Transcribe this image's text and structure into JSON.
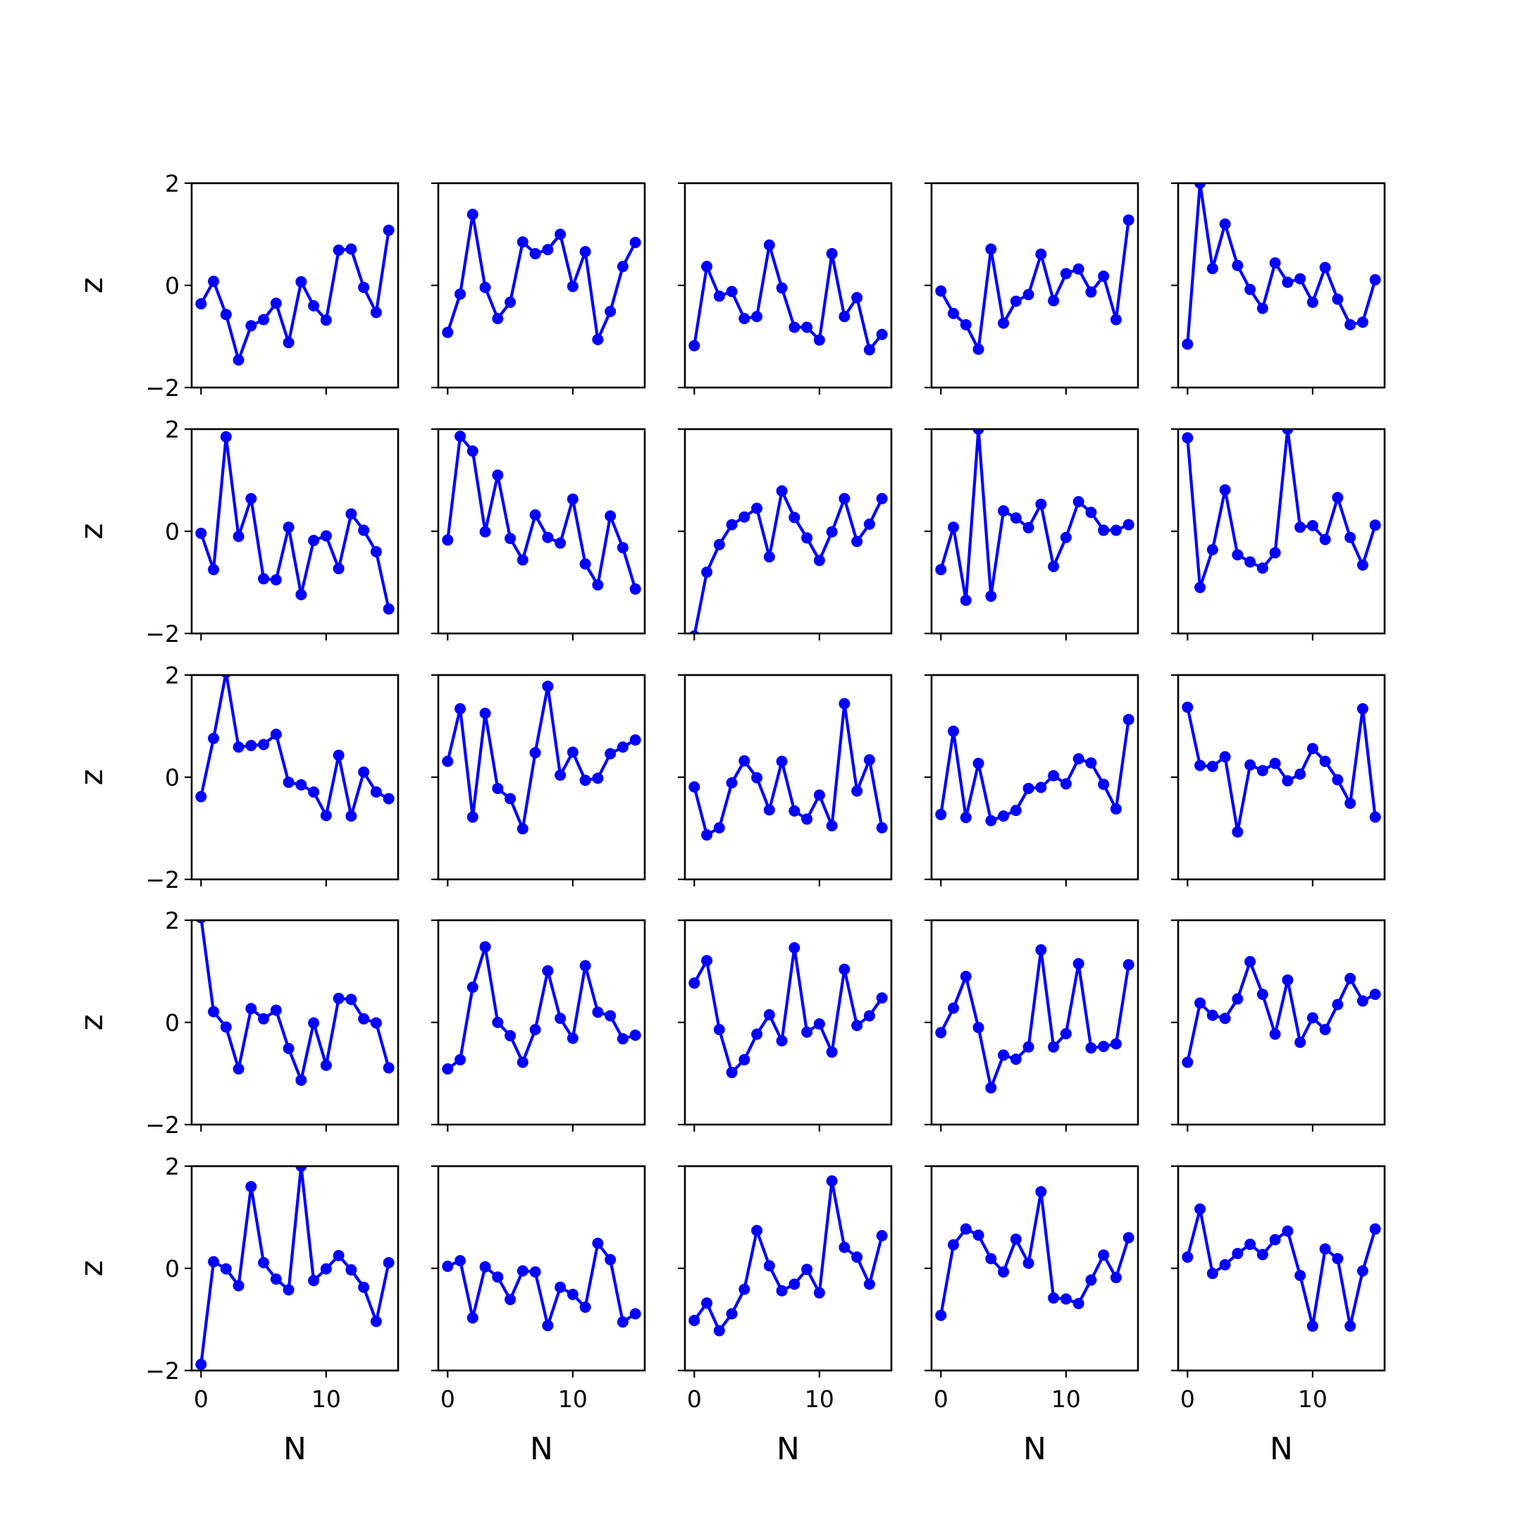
{
  "chart_data": {
    "type": "line",
    "layout": "5x5 grid of subplots",
    "xlabel": "N",
    "ylabel": "z",
    "xlim": [
      -0.75,
      15.75
    ],
    "ylim": [
      -2,
      2
    ],
    "x_ticks": [
      0,
      10
    ],
    "y_ticks": [
      -2,
      0,
      2
    ],
    "x_tick_labels": [
      "0",
      "10"
    ],
    "y_tick_labels": [
      "−2",
      "0",
      "2"
    ],
    "line_color": "#0000ff",
    "marker": "circle",
    "grid": false,
    "x": [
      0,
      1,
      2,
      3,
      4,
      5,
      6,
      7,
      8,
      9,
      10,
      11,
      12,
      13,
      14,
      15
    ],
    "panels": [
      {
        "row": 1,
        "col": 1,
        "values": [
          -0.36,
          0.08,
          -0.57,
          -1.46,
          -0.79,
          -0.67,
          -0.35,
          -1.12,
          0.07,
          -0.4,
          -0.68,
          0.69,
          0.71,
          -0.04,
          -0.53,
          1.08
        ]
      },
      {
        "row": 1,
        "col": 2,
        "values": [
          -0.92,
          -0.17,
          1.39,
          -0.04,
          -0.65,
          -0.33,
          0.85,
          0.62,
          0.7,
          1.0,
          -0.02,
          0.66,
          -1.06,
          -0.51,
          0.37,
          0.84
        ]
      },
      {
        "row": 1,
        "col": 3,
        "values": [
          -1.18,
          0.37,
          -0.21,
          -0.12,
          -0.65,
          -0.61,
          0.79,
          -0.05,
          -0.82,
          -0.82,
          -1.07,
          0.62,
          -0.61,
          -0.24,
          -1.26,
          -0.96
        ]
      },
      {
        "row": 1,
        "col": 4,
        "values": [
          -0.11,
          -0.55,
          -0.77,
          -1.25,
          0.71,
          -0.74,
          -0.31,
          -0.18,
          0.61,
          -0.3,
          0.23,
          0.32,
          -0.13,
          0.18,
          -0.67,
          1.28
        ]
      },
      {
        "row": 1,
        "col": 5,
        "values": [
          -1.15,
          2.0,
          0.33,
          1.2,
          0.39,
          -0.08,
          -0.45,
          0.44,
          0.06,
          0.13,
          -0.33,
          0.35,
          -0.27,
          -0.77,
          -0.72,
          0.11
        ]
      },
      {
        "row": 2,
        "col": 1,
        "values": [
          -0.04,
          -0.75,
          1.85,
          -0.1,
          0.64,
          -0.93,
          -0.95,
          0.08,
          -1.24,
          -0.18,
          -0.09,
          -0.73,
          0.34,
          0.02,
          -0.4,
          -1.52
        ]
      },
      {
        "row": 2,
        "col": 2,
        "values": [
          -0.17,
          1.86,
          1.57,
          -0.01,
          1.1,
          -0.14,
          -0.56,
          0.32,
          -0.12,
          -0.23,
          0.63,
          -0.64,
          -1.05,
          0.3,
          -0.32,
          -1.13
        ]
      },
      {
        "row": 2,
        "col": 3,
        "values": [
          -2.05,
          -0.8,
          -0.26,
          0.13,
          0.28,
          0.45,
          -0.5,
          0.79,
          0.27,
          -0.13,
          -0.57,
          -0.01,
          0.64,
          -0.2,
          0.14,
          0.64
        ]
      },
      {
        "row": 2,
        "col": 4,
        "values": [
          -0.75,
          0.08,
          -1.35,
          2.0,
          -1.27,
          0.4,
          0.26,
          0.07,
          0.53,
          -0.69,
          -0.12,
          0.58,
          0.37,
          0.02,
          0.02,
          0.13
        ]
      },
      {
        "row": 2,
        "col": 5,
        "values": [
          1.83,
          -1.1,
          -0.36,
          0.81,
          -0.46,
          -0.6,
          -0.72,
          -0.42,
          2.0,
          0.08,
          0.11,
          -0.16,
          0.66,
          -0.12,
          -0.66,
          0.12
        ]
      },
      {
        "row": 3,
        "col": 1,
        "values": [
          -0.38,
          0.76,
          2.05,
          0.59,
          0.62,
          0.64,
          0.84,
          -0.1,
          -0.15,
          -0.29,
          -0.75,
          0.43,
          -0.76,
          0.1,
          -0.29,
          -0.42
        ]
      },
      {
        "row": 3,
        "col": 2,
        "values": [
          0.31,
          1.34,
          -0.78,
          1.25,
          -0.22,
          -0.42,
          -1.01,
          0.48,
          1.78,
          0.04,
          0.49,
          -0.06,
          -0.02,
          0.46,
          0.59,
          0.73
        ]
      },
      {
        "row": 3,
        "col": 3,
        "values": [
          -0.19,
          -1.13,
          -0.99,
          -0.11,
          0.32,
          -0.01,
          -0.64,
          0.31,
          -0.66,
          -0.82,
          -0.35,
          -0.95,
          1.44,
          -0.27,
          0.34,
          -0.99
        ]
      },
      {
        "row": 3,
        "col": 4,
        "values": [
          -0.73,
          0.9,
          -0.79,
          0.27,
          -0.85,
          -0.76,
          -0.65,
          -0.22,
          -0.2,
          0.03,
          -0.13,
          0.36,
          0.28,
          -0.14,
          -0.62,
          1.13
        ]
      },
      {
        "row": 3,
        "col": 5,
        "values": [
          1.37,
          0.23,
          0.21,
          0.4,
          -1.07,
          0.24,
          0.13,
          0.27,
          -0.07,
          0.06,
          0.56,
          0.31,
          -0.05,
          -0.51,
          1.34,
          -0.78
        ]
      },
      {
        "row": 4,
        "col": 1,
        "values": [
          2.05,
          0.21,
          -0.09,
          -0.91,
          0.27,
          0.07,
          0.24,
          -0.51,
          -1.13,
          -0.01,
          -0.84,
          0.47,
          0.45,
          0.07,
          -0.01,
          -0.89
        ]
      },
      {
        "row": 4,
        "col": 2,
        "values": [
          -0.91,
          -0.73,
          0.69,
          1.48,
          0.0,
          -0.26,
          -0.78,
          -0.14,
          1.01,
          0.08,
          -0.31,
          1.11,
          0.2,
          0.13,
          -0.32,
          -0.25
        ]
      },
      {
        "row": 4,
        "col": 3,
        "values": [
          0.77,
          1.21,
          -0.14,
          -0.98,
          -0.73,
          -0.23,
          0.15,
          -0.36,
          1.46,
          -0.19,
          -0.03,
          -0.58,
          1.04,
          -0.06,
          0.13,
          0.48
        ]
      },
      {
        "row": 4,
        "col": 4,
        "values": [
          -0.2,
          0.28,
          0.9,
          -0.1,
          -1.28,
          -0.64,
          -0.72,
          -0.48,
          1.42,
          -0.48,
          -0.22,
          1.15,
          -0.5,
          -0.47,
          -0.42,
          1.13
        ]
      },
      {
        "row": 4,
        "col": 5,
        "values": [
          -0.78,
          0.38,
          0.14,
          0.08,
          0.46,
          1.19,
          0.55,
          -0.23,
          0.83,
          -0.39,
          0.09,
          -0.14,
          0.35,
          0.86,
          0.42,
          0.55
        ]
      },
      {
        "row": 5,
        "col": 1,
        "values": [
          -1.88,
          0.13,
          -0.01,
          -0.34,
          1.6,
          0.11,
          -0.21,
          -0.42,
          2.0,
          -0.24,
          -0.01,
          0.25,
          -0.03,
          -0.37,
          -1.04,
          0.11
        ]
      },
      {
        "row": 5,
        "col": 2,
        "values": [
          0.04,
          0.15,
          -0.97,
          0.03,
          -0.17,
          -0.61,
          -0.05,
          -0.07,
          -1.12,
          -0.37,
          -0.51,
          -0.76,
          0.49,
          0.17,
          -1.05,
          -0.89
        ]
      },
      {
        "row": 5,
        "col": 3,
        "values": [
          -1.02,
          -0.68,
          -1.22,
          -0.89,
          -0.41,
          0.74,
          0.05,
          -0.44,
          -0.31,
          -0.02,
          -0.48,
          1.71,
          0.41,
          0.22,
          -0.31,
          0.64
        ]
      },
      {
        "row": 5,
        "col": 4,
        "values": [
          -0.92,
          0.46,
          0.77,
          0.65,
          0.19,
          -0.07,
          0.57,
          0.1,
          1.5,
          -0.58,
          -0.6,
          -0.69,
          -0.23,
          0.26,
          -0.18,
          0.6
        ]
      },
      {
        "row": 5,
        "col": 5,
        "values": [
          0.22,
          1.16,
          -0.1,
          0.07,
          0.29,
          0.47,
          0.27,
          0.56,
          0.73,
          -0.14,
          -1.13,
          0.38,
          0.19,
          -1.13,
          -0.05,
          0.77
        ]
      }
    ]
  }
}
